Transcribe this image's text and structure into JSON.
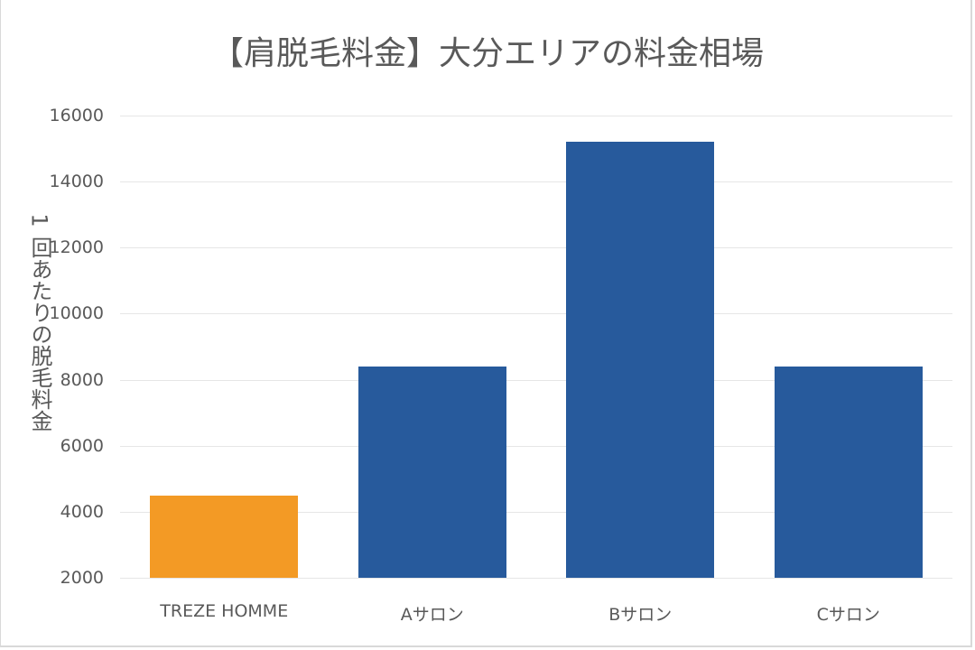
{
  "chart_data": {
    "type": "bar",
    "title": "【肩脱毛料金】大分エリアの料金相場",
    "xlabel": "",
    "ylabel": "1回あたりの脱毛料金",
    "categories": [
      "TREZE HOMME",
      "Aサロン",
      "Bサロン",
      "Cサロン"
    ],
    "values": [
      4500,
      8400,
      15200,
      8400
    ],
    "bar_colors": [
      "#f39a25",
      "#275a9c",
      "#275a9c",
      "#275a9c"
    ],
    "ylim": [
      2000,
      16000
    ],
    "yticks": [
      2000,
      4000,
      6000,
      8000,
      10000,
      12000,
      14000,
      16000
    ],
    "grid": true,
    "legend": "none"
  },
  "ytick_labels": [
    "16000",
    "14000",
    "12000",
    "10000",
    "8000",
    "6000",
    "4000",
    "2000"
  ]
}
